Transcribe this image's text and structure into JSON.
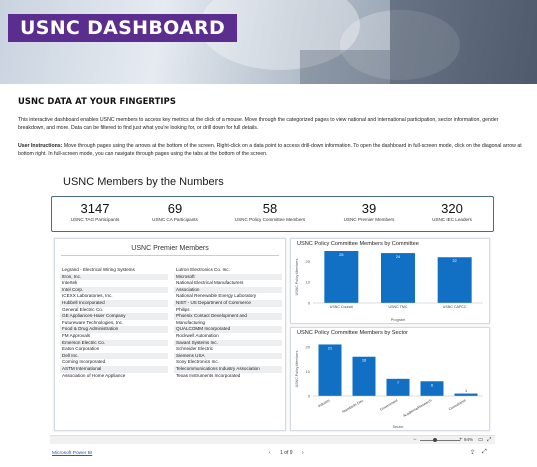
{
  "header": {
    "title": "USNC DASHBOARD"
  },
  "section": {
    "heading": "USNC DATA AT YOUR FINGERTIPS"
  },
  "intro": "This interactive dashboard enables USNC members to access key metrics at the click of a mouse. Move through the categorized pages to view national and international participation, sector information, gender breakdown, and more. Data can be filtered to find just what you're looking for, or drill down for full details.",
  "instructions": {
    "label": "User Instructions:",
    "text": " Move through pages using the arrows at the bottom of the screen. Right-click on a data point to access drill-down information. To open the dashboard in full-screen mode, click on the diagonal arrow at bottom right. In full-screen mode, you can navigate through pages using the tabs at the bottom of the screen."
  },
  "report": {
    "title": "USNC Members by the Numbers",
    "kpis": [
      {
        "value": "3147",
        "label": "USNC TAG Participants"
      },
      {
        "value": "69",
        "label": "USNC CA Participants"
      },
      {
        "value": "58",
        "label": "USNC Policy Committee Members"
      },
      {
        "value": "39",
        "label": "USNC Premier Members"
      },
      {
        "value": "320",
        "label": "USNC IEC Leaders"
      }
    ],
    "premier": {
      "title": "USNC Premier Members",
      "col1": [
        "Legrand - Electrical Wiring Systems",
        "Itron, Inc.",
        "Intertek",
        "Intel Corp.",
        "ICEXX Laboratories, Inc.",
        "Hubbell Incorporated",
        "General Electric Co.",
        "GE Appliances-Haier Company",
        "Futureware Technologies, Inc.",
        "Food & Drug Administration",
        "FM Approvals",
        "Emerson Electric Co.",
        "Eaton Corporation",
        "Dell Inc.",
        "Corning Incorporated",
        "ASTM International",
        "Association of Home Appliance"
      ],
      "col2": [
        "Lutron Electronics Co. Inc.",
        "Microsoft",
        "National Electrical Manufacturers",
        "Association",
        "National Renewable Energy Laboratory",
        "NIST - US Department of Commerce",
        "Philips",
        "Phoenix Contact Development and",
        "Manufacturing",
        "QUALCOMM Incorporated",
        "Rockwell Automation",
        "Savant Systems Inc.",
        "Schneider Electric",
        "Siemens USA",
        "Sony Electronics Inc.",
        "Telecommunications Industry Association",
        "Texas Instruments Incorporated"
      ]
    },
    "footer": {
      "zoom": "94%",
      "minus": "−",
      "plus": "+"
    }
  },
  "chart_data": [
    {
      "type": "bar",
      "title": "USNC Policy Committee Members by Committee",
      "xlabel": "Program",
      "ylabel": "USNC Policy Members",
      "categories": [
        "USNC Council",
        "USNC TMC",
        "USNC CAPCC"
      ],
      "values": [
        25,
        24,
        22
      ],
      "ylim": [
        0,
        25
      ],
      "yticks": [
        "20",
        "10",
        "0"
      ],
      "color": "#1170c4"
    },
    {
      "type": "bar",
      "title": "USNC Policy Committee Members by Sector",
      "xlabel": "Sector",
      "ylabel": "USNC Policy Members",
      "categories": [
        "Industry",
        "Standards Dev.",
        "Government",
        "Academia/Research",
        "Consultants"
      ],
      "values": [
        21,
        16,
        7,
        6,
        1
      ],
      "ylim": [
        0,
        22
      ],
      "yticks": [
        "20",
        "10",
        "0"
      ],
      "color": "#1170c4"
    }
  ],
  "bottom": {
    "powerbi_link": "Microsoft Power BI",
    "page_indicator": "1 of 9",
    "prev": "‹",
    "next": "›"
  }
}
